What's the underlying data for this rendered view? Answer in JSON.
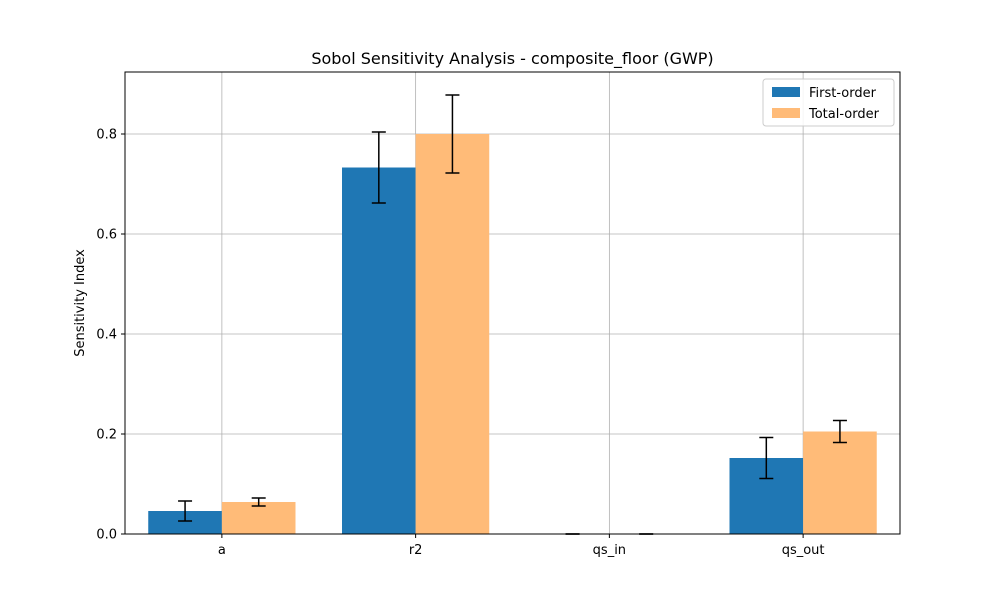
{
  "chart_data": {
    "type": "bar",
    "title": "Sobol Sensitivity Analysis - composite_floor (GWP)",
    "xlabel": "",
    "ylabel": "Sensitivity Index",
    "categories": [
      "a",
      "r2",
      "qs_in",
      "qs_out"
    ],
    "ylim": [
      0,
      0.924
    ],
    "yticks": [
      0.0,
      0.2,
      0.4,
      0.6,
      0.8
    ],
    "ytick_labels": [
      "0.0",
      "0.2",
      "0.4",
      "0.6",
      "0.8"
    ],
    "grid": true,
    "legend_position": "top-right",
    "series": [
      {
        "name": "First-order",
        "color": "#1f77b4",
        "values": [
          0.046,
          0.733,
          0.0,
          0.152
        ],
        "errors": [
          0.02,
          0.071,
          0.0,
          0.041
        ]
      },
      {
        "name": "Total-order",
        "color": "#ffbb78",
        "values": [
          0.064,
          0.8,
          0.0,
          0.205
        ],
        "errors": [
          0.008,
          0.078,
          0.0,
          0.022
        ]
      }
    ]
  }
}
